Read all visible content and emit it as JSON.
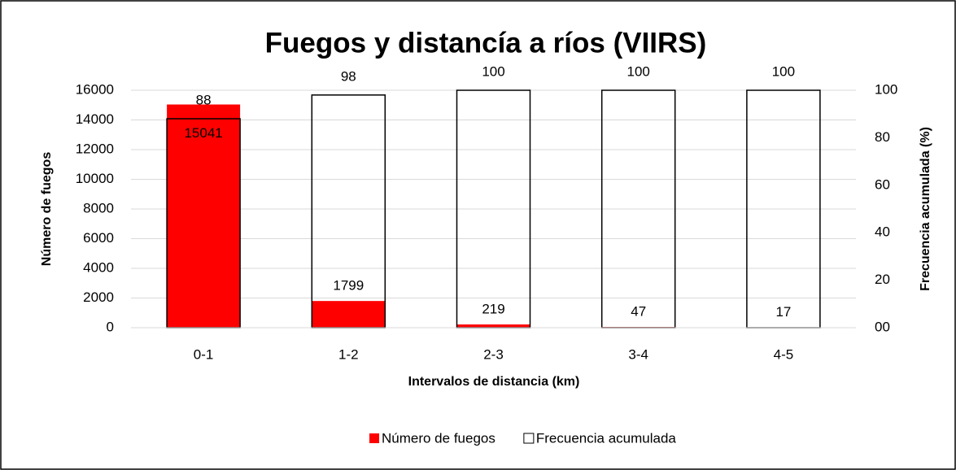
{
  "chart_data": {
    "type": "bar",
    "title": "Fuegos y distancía a ríos (VIIRS)",
    "xlabel": "Intervalos de distancia (km)",
    "ylabel": "Número de fuegos",
    "y2label": "Frecuencia acumulada (%)",
    "categories": [
      "0-1",
      "1-2",
      "2-3",
      "3-4",
      "4-5"
    ],
    "series": [
      {
        "name": "Número de fuegos",
        "color": "#ff0000",
        "values": [
          15041,
          1799,
          219,
          47,
          17
        ]
      },
      {
        "name": "Frecuencia acumulada",
        "color": "#ffffff",
        "axis": "y2",
        "values": [
          88,
          98,
          100,
          100,
          100
        ]
      }
    ],
    "ylim": [
      0,
      16000
    ],
    "yticks": [
      0,
      2000,
      4000,
      6000,
      8000,
      10000,
      12000,
      14000,
      16000
    ],
    "y2lim": [
      0,
      100
    ],
    "y2ticks": [
      {
        "value": 0,
        "label": "00"
      },
      20,
      40,
      60,
      80,
      100
    ],
    "grid": true,
    "legend": "bottom"
  }
}
